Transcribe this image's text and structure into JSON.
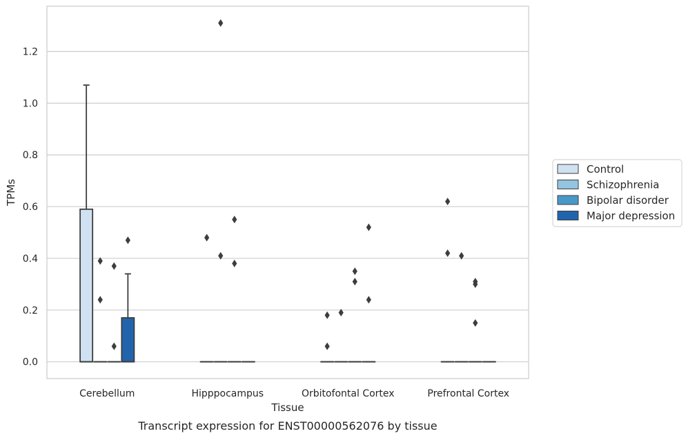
{
  "chart_data": {
    "type": "box",
    "title": "",
    "caption": "Transcript expression for ENST00000562076 by tissue",
    "xlabel": "Tissue",
    "ylabel": "TPMs",
    "ylim": [
      -0.065,
      1.375
    ],
    "yticks": [
      0.0,
      0.2,
      0.4,
      0.6,
      0.8,
      1.0,
      1.2
    ],
    "ytick_labels": [
      "0.0",
      "0.2",
      "0.4",
      "0.6",
      "0.8",
      "1.0",
      "1.2"
    ],
    "grid": "horizontal",
    "legend_position": "right",
    "categories": [
      "Cerebellum",
      "Hipppocampus",
      "Orbitofontal Cortex",
      "Prefrontal Cortex"
    ],
    "series": [
      {
        "name": "Control",
        "color": "#d0e1f2",
        "boxes": [
          {
            "q1": 0,
            "median": 0,
            "q3": 0.59,
            "whisker_low": 0,
            "whisker_high": 1.07,
            "outliers": []
          },
          {
            "q1": 0,
            "median": 0,
            "q3": 0,
            "whisker_low": 0,
            "whisker_high": 0,
            "outliers": [
              0.48
            ]
          },
          {
            "q1": 0,
            "median": 0,
            "q3": 0,
            "whisker_low": 0,
            "whisker_high": 0,
            "outliers": [
              0.18,
              0.06
            ]
          },
          {
            "q1": 0,
            "median": 0,
            "q3": 0,
            "whisker_low": 0,
            "whisker_high": 0,
            "outliers": [
              0.62,
              0.42
            ]
          }
        ]
      },
      {
        "name": "Schizophrenia",
        "color": "#94c4df",
        "boxes": [
          {
            "q1": 0,
            "median": 0,
            "q3": 0,
            "whisker_low": 0,
            "whisker_high": 0,
            "outliers": [
              0.39,
              0.24
            ]
          },
          {
            "q1": 0,
            "median": 0,
            "q3": 0,
            "whisker_low": 0,
            "whisker_high": 0,
            "outliers": [
              1.31,
              0.41
            ]
          },
          {
            "q1": 0,
            "median": 0,
            "q3": 0,
            "whisker_low": 0,
            "whisker_high": 0,
            "outliers": [
              0.19
            ]
          },
          {
            "q1": 0,
            "median": 0,
            "q3": 0,
            "whisker_low": 0,
            "whisker_high": 0,
            "outliers": [
              0.41
            ]
          }
        ]
      },
      {
        "name": "Bipolar disorder",
        "color": "#4a98c9",
        "boxes": [
          {
            "q1": 0,
            "median": 0,
            "q3": 0,
            "whisker_low": 0,
            "whisker_high": 0,
            "outliers": [
              0.37,
              0.06
            ]
          },
          {
            "q1": 0,
            "median": 0,
            "q3": 0,
            "whisker_low": 0,
            "whisker_high": 0,
            "outliers": [
              0.55,
              0.38
            ]
          },
          {
            "q1": 0,
            "median": 0,
            "q3": 0,
            "whisker_low": 0,
            "whisker_high": 0,
            "outliers": [
              0.35,
              0.31
            ]
          },
          {
            "q1": 0,
            "median": 0,
            "q3": 0,
            "whisker_low": 0,
            "whisker_high": 0,
            "outliers": [
              0.31,
              0.3,
              0.15
            ]
          }
        ]
      },
      {
        "name": "Major depression",
        "color": "#2164ab",
        "boxes": [
          {
            "q1": 0,
            "median": 0,
            "q3": 0.17,
            "whisker_low": 0,
            "whisker_high": 0.34,
            "outliers": [
              0.47
            ]
          },
          {
            "q1": 0,
            "median": 0,
            "q3": 0,
            "whisker_low": 0,
            "whisker_high": 0,
            "outliers": []
          },
          {
            "q1": 0,
            "median": 0,
            "q3": 0,
            "whisker_low": 0,
            "whisker_high": 0,
            "outliers": [
              0.52,
              0.24
            ]
          },
          {
            "q1": 0,
            "median": 0,
            "q3": 0,
            "whisker_low": 0,
            "whisker_high": 0,
            "outliers": []
          }
        ]
      }
    ]
  }
}
